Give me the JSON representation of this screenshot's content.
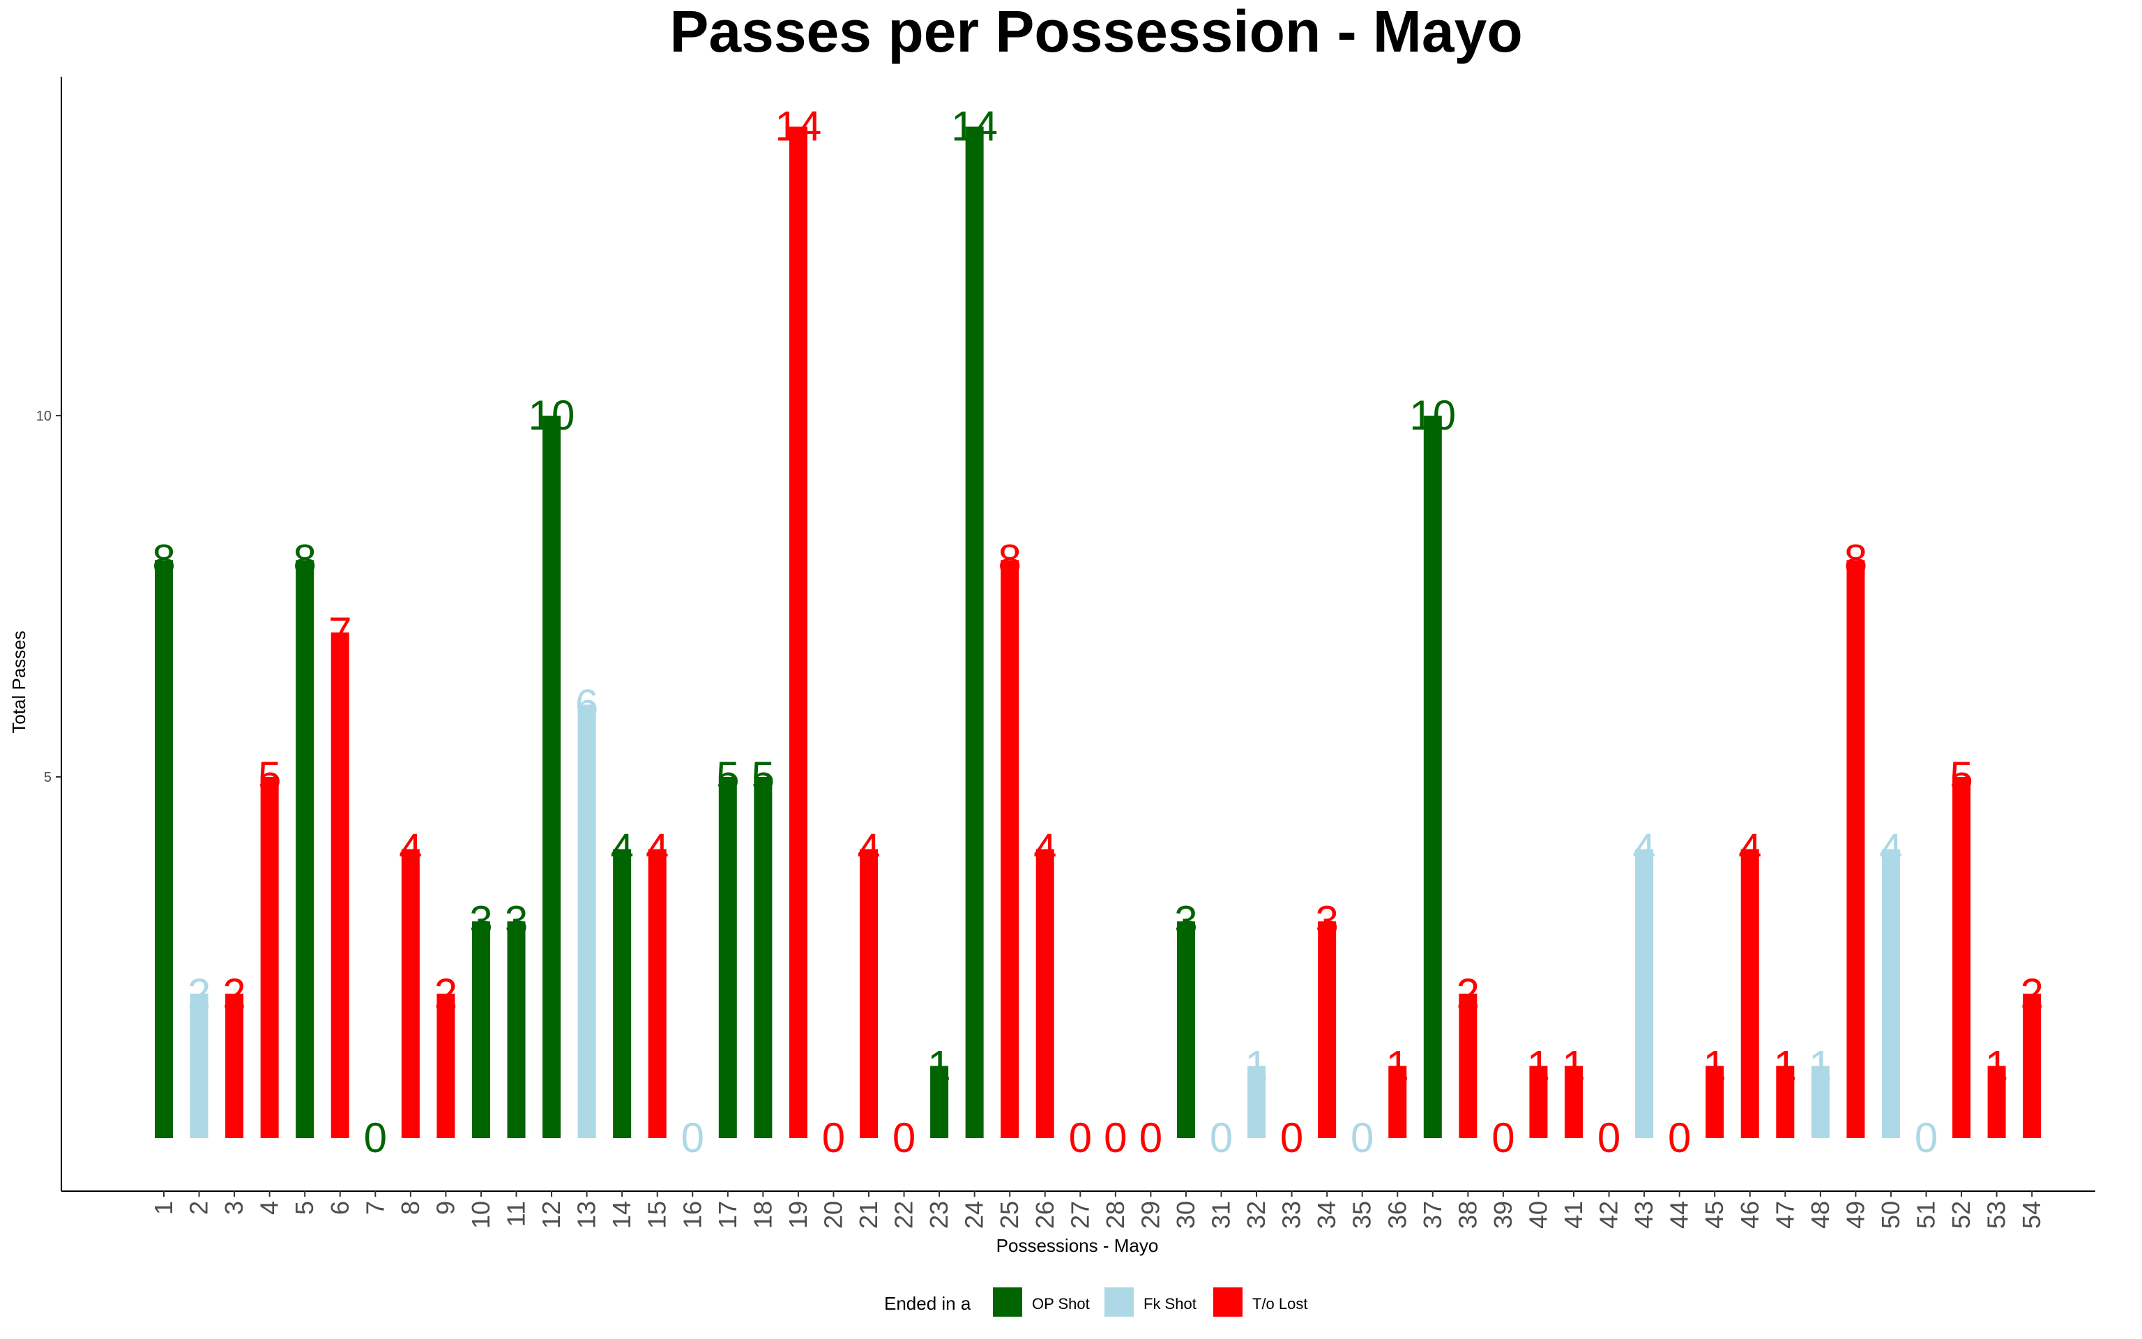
{
  "chart_data": {
    "type": "bar",
    "title": "Passes per Possession - Mayo",
    "xlabel": "Possessions - Mayo",
    "ylabel": "Total Passes",
    "yticks": [
      5,
      10
    ],
    "ylim": [
      0,
      14
    ],
    "grid": false,
    "legend": {
      "title": "Ended in a",
      "placement": "bottom",
      "entries": [
        {
          "key": "op",
          "label": "OP Shot",
          "color": "#006400"
        },
        {
          "key": "fk",
          "label": "Fk Shot",
          "color": "#ADD8E6"
        },
        {
          "key": "to",
          "label": "T/o Lost",
          "color": "#FF0000"
        }
      ]
    },
    "categories": [
      "1",
      "2",
      "3",
      "4",
      "5",
      "6",
      "7",
      "8",
      "9",
      "10",
      "11",
      "12",
      "13",
      "14",
      "15",
      "16",
      "17",
      "18",
      "19",
      "20",
      "21",
      "22",
      "23",
      "24",
      "25",
      "26",
      "27",
      "28",
      "29",
      "30",
      "31",
      "32",
      "33",
      "34",
      "35",
      "36",
      "37",
      "38",
      "39",
      "40",
      "41",
      "42",
      "43",
      "44",
      "45",
      "46",
      "47",
      "48",
      "49",
      "50",
      "51",
      "52",
      "53",
      "54"
    ],
    "values": [
      8,
      2,
      2,
      5,
      8,
      7,
      0,
      4,
      2,
      3,
      3,
      10,
      6,
      4,
      4,
      0,
      5,
      5,
      14,
      0,
      4,
      0,
      1,
      14,
      8,
      4,
      0,
      0,
      0,
      3,
      0,
      1,
      0,
      3,
      0,
      1,
      10,
      2,
      0,
      1,
      1,
      0,
      4,
      0,
      1,
      4,
      1,
      1,
      8,
      4,
      0,
      5,
      1,
      2
    ],
    "outcome": [
      "op",
      "fk",
      "to",
      "to",
      "op",
      "to",
      "op",
      "to",
      "to",
      "op",
      "op",
      "op",
      "fk",
      "op",
      "to",
      "fk",
      "op",
      "op",
      "to",
      "to",
      "to",
      "to",
      "op",
      "op",
      "to",
      "to",
      "to",
      "to",
      "to",
      "op",
      "fk",
      "fk",
      "to",
      "to",
      "fk",
      "to",
      "op",
      "to",
      "to",
      "to",
      "to",
      "to",
      "fk",
      "to",
      "to",
      "to",
      "to",
      "fk",
      "to",
      "fk",
      "fk",
      "to",
      "to",
      "to"
    ]
  }
}
